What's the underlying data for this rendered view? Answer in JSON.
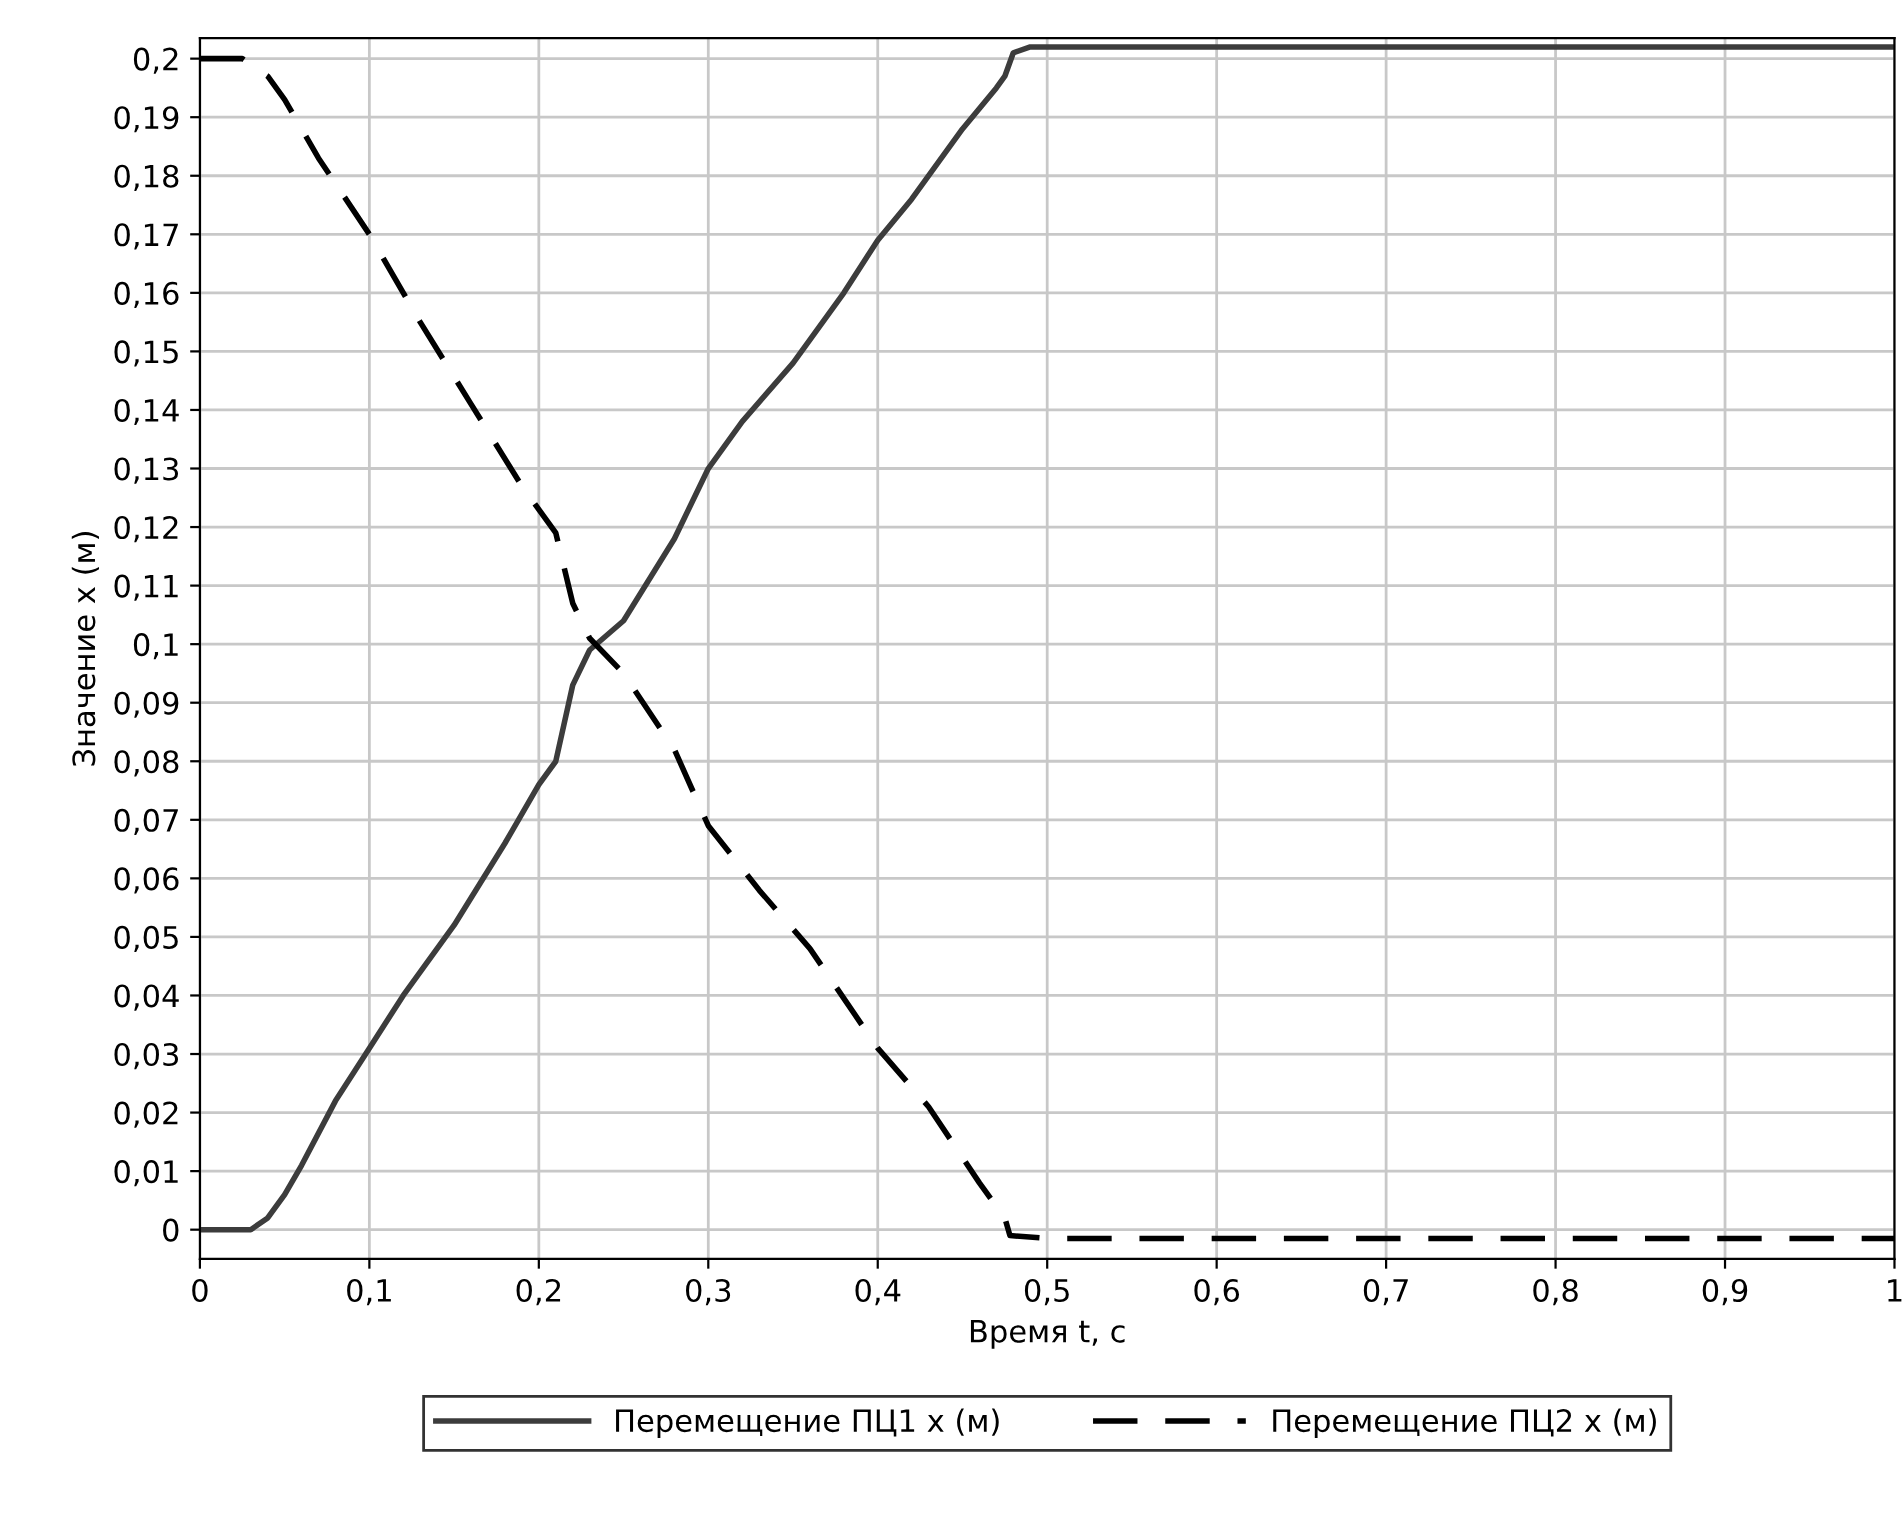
{
  "chart_data": {
    "type": "line",
    "xlabel": "Время t, c",
    "ylabel": "Значение x (м)",
    "xlim": [
      0,
      1
    ],
    "ylim": [
      -0.005,
      0.2035
    ],
    "xticks": [
      0,
      {
        "value": 0.1,
        "label": "0,1"
      },
      {
        "value": 0.2,
        "label": "0,2"
      },
      {
        "value": 0.3,
        "label": "0,3"
      },
      {
        "value": 0.4,
        "label": "0,4"
      },
      {
        "value": 0.5,
        "label": "0,5"
      },
      {
        "value": 0.6,
        "label": "0,6"
      },
      {
        "value": 0.7,
        "label": "0,7"
      },
      {
        "value": 0.8,
        "label": "0,8"
      },
      {
        "value": 0.9,
        "label": "0,9"
      },
      1
    ],
    "yticks": [
      0,
      {
        "value": 0.01,
        "label": "0,01"
      },
      {
        "value": 0.02,
        "label": "0,02"
      },
      {
        "value": 0.03,
        "label": "0,03"
      },
      {
        "value": 0.04,
        "label": "0,04"
      },
      {
        "value": 0.05,
        "label": "0,05"
      },
      {
        "value": 0.06,
        "label": "0,06"
      },
      {
        "value": 0.07,
        "label": "0,07"
      },
      {
        "value": 0.08,
        "label": "0,08"
      },
      {
        "value": 0.09,
        "label": "0,09"
      },
      {
        "value": 0.1,
        "label": "0,1"
      },
      {
        "value": 0.11,
        "label": "0,11"
      },
      {
        "value": 0.12,
        "label": "0,12"
      },
      {
        "value": 0.13,
        "label": "0,13"
      },
      {
        "value": 0.14,
        "label": "0,14"
      },
      {
        "value": 0.15,
        "label": "0,15"
      },
      {
        "value": 0.16,
        "label": "0,16"
      },
      {
        "value": 0.17,
        "label": "0,17"
      },
      {
        "value": 0.18,
        "label": "0,18"
      },
      {
        "value": 0.19,
        "label": "0,19"
      },
      {
        "value": 0.2,
        "label": "0,2"
      }
    ],
    "grid": true,
    "legend": "bottom",
    "marker": "none",
    "series": [
      {
        "name": "Перемещение ПЦ1 x (м)",
        "color": "#3c3c3c",
        "line_style": "solid",
        "x": [
          0,
          0.03,
          0.04,
          0.05,
          0.06,
          0.08,
          0.1,
          0.12,
          0.15,
          0.18,
          0.2,
          0.21,
          0.22,
          0.23,
          0.25,
          0.28,
          0.3,
          0.32,
          0.35,
          0.38,
          0.4,
          0.42,
          0.45,
          0.47,
          0.475,
          0.48,
          0.49,
          1
        ],
        "values": [
          0,
          0,
          0.002,
          0.006,
          0.011,
          0.022,
          0.031,
          0.04,
          0.052,
          0.066,
          0.076,
          0.08,
          0.093,
          0.099,
          0.104,
          0.118,
          0.13,
          0.138,
          0.148,
          0.16,
          0.169,
          0.176,
          0.188,
          0.195,
          0.197,
          0.201,
          0.202,
          0.202
        ]
      },
      {
        "name": "Перемещение ПЦ2 x (м)",
        "color": "#000000",
        "line_style": "dashed",
        "x": [
          0,
          0.025,
          0.04,
          0.05,
          0.07,
          0.1,
          0.13,
          0.16,
          0.19,
          0.21,
          0.22,
          0.23,
          0.25,
          0.28,
          0.3,
          0.33,
          0.36,
          0.4,
          0.43,
          0.46,
          0.475,
          0.478,
          0.5,
          1
        ],
        "values": [
          0.2,
          0.2,
          0.197,
          0.193,
          0.183,
          0.17,
          0.155,
          0.141,
          0.127,
          0.119,
          0.107,
          0.101,
          0.095,
          0.082,
          0.069,
          0.058,
          0.048,
          0.031,
          0.021,
          0.008,
          0.002,
          -0.001,
          -0.0015,
          -0.0015
        ]
      }
    ]
  }
}
